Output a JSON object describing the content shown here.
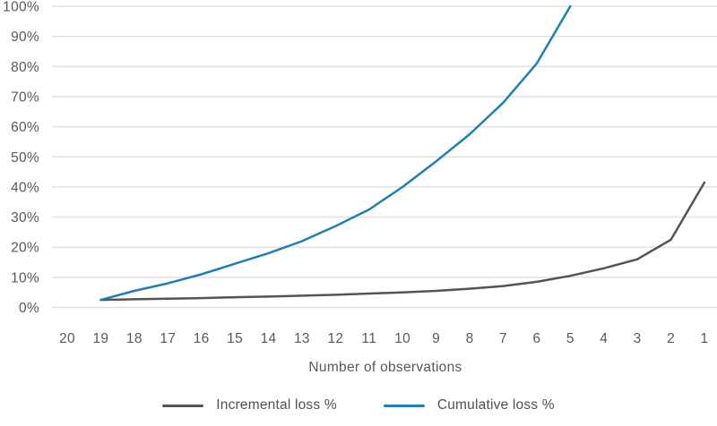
{
  "chart_data": {
    "type": "line",
    "title": "",
    "xlabel": "Number of observations",
    "ylabel": "",
    "x_ticks": [
      20,
      19,
      18,
      17,
      16,
      15,
      14,
      13,
      12,
      11,
      10,
      9,
      8,
      7,
      6,
      5,
      4,
      3,
      2,
      1
    ],
    "x_axis_reversed": true,
    "ylim": [
      0,
      100
    ],
    "y_tick_step": 10,
    "y_tick_format": "percent",
    "grid": "horizontal-only",
    "legend_position": "bottom-center",
    "series": [
      {
        "name": "Incremental loss %",
        "color": "#545456",
        "x": [
          19,
          18,
          17,
          16,
          15,
          14,
          13,
          12,
          11,
          10,
          9,
          8,
          7,
          6,
          5,
          4,
          3,
          2,
          1
        ],
        "values": [
          2.5,
          2.7,
          2.9,
          3.1,
          3.4,
          3.6,
          3.9,
          4.2,
          4.6,
          5.0,
          5.5,
          6.2,
          7.1,
          8.5,
          10.5,
          13.0,
          16.0,
          22.5,
          41.5
        ]
      },
      {
        "name": "Cumulative loss %",
        "color": "#1f7fad",
        "x": [
          19,
          18,
          17,
          16,
          15,
          14,
          13,
          12,
          11,
          10,
          9,
          8,
          7,
          6,
          5
        ],
        "values": [
          2.5,
          5.5,
          8.0,
          11.0,
          14.5,
          18.0,
          22.0,
          27.0,
          32.5,
          40.0,
          48.5,
          57.5,
          68.0,
          81.0,
          100.0
        ]
      }
    ]
  },
  "styles": {
    "background": "#ffffff",
    "gridline_color": "#e1e1e1",
    "tick_label_color": "#58595b"
  }
}
